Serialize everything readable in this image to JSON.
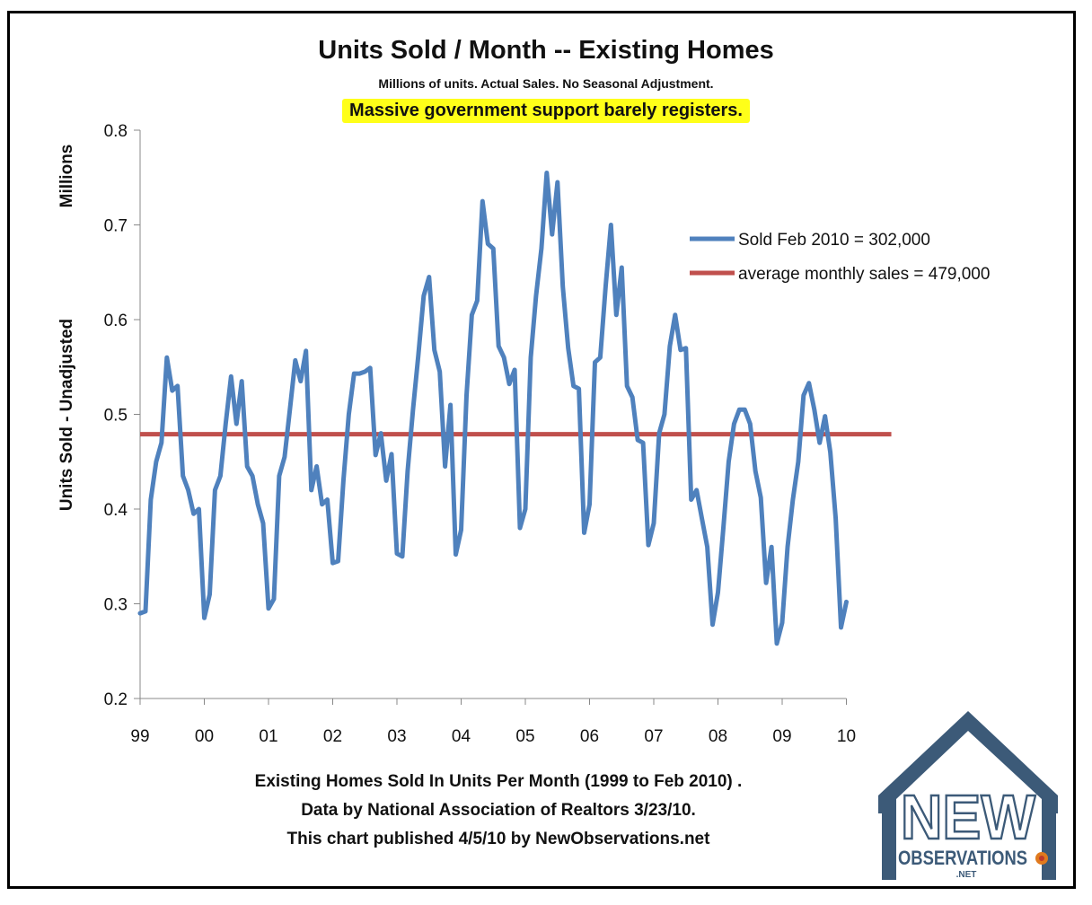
{
  "header": {
    "title": "Units Sold / Month -- Existing Homes",
    "subtitle": "Millions of units. Actual Sales. No Seasonal Adjustment.",
    "highlight": "Massive government support barely registers."
  },
  "footer": {
    "line1": "Existing Homes Sold In Units Per Month (1999 to Feb 2010) .",
    "line2": "Data by National Association of Realtors 3/23/10.",
    "line3": "This chart published 4/5/10 by NewObservations.net"
  },
  "logo": {
    "main": "NEW",
    "sub": "OBSERVATIONS",
    "tld": ".NET"
  },
  "colors": {
    "series_sold": "#4f81bd",
    "series_avg": "#c0504d",
    "highlight_bg": "#ffff19",
    "logo": "#3c5a78"
  },
  "chart_data": {
    "type": "line",
    "ylabel_outer": "Millions",
    "ylabel": "Units Sold - Unadjusted",
    "ylim": [
      0.2,
      0.8
    ],
    "yticks": [
      "0.2",
      "0.3",
      "0.4",
      "0.5",
      "0.6",
      "0.7",
      "0.8"
    ],
    "xticks": [
      "99",
      "00",
      "01",
      "02",
      "03",
      "04",
      "05",
      "06",
      "07",
      "08",
      "09",
      "10"
    ],
    "xlim_years": [
      1999,
      2010
    ],
    "legend_position": "right",
    "series": [
      {
        "name": "Sold Feb 2010 = 302,000",
        "start": "1999-01",
        "values": [
          0.29,
          0.292,
          0.41,
          0.45,
          0.47,
          0.56,
          0.525,
          0.53,
          0.435,
          0.42,
          0.395,
          0.4,
          0.285,
          0.31,
          0.42,
          0.435,
          0.49,
          0.54,
          0.49,
          0.535,
          0.445,
          0.435,
          0.405,
          0.385,
          0.295,
          0.305,
          0.435,
          0.455,
          0.505,
          0.557,
          0.535,
          0.567,
          0.42,
          0.445,
          0.405,
          0.41,
          0.343,
          0.345,
          0.43,
          0.5,
          0.543,
          0.543,
          0.545,
          0.549,
          0.457,
          0.48,
          0.43,
          0.458,
          0.353,
          0.35,
          0.44,
          0.505,
          0.562,
          0.625,
          0.645,
          0.568,
          0.545,
          0.445,
          0.51,
          0.352,
          0.378,
          0.52,
          0.605,
          0.62,
          0.725,
          0.68,
          0.675,
          0.572,
          0.56,
          0.532,
          0.547,
          0.38,
          0.4,
          0.56,
          0.625,
          0.675,
          0.755,
          0.69,
          0.745,
          0.635,
          0.57,
          0.53,
          0.527,
          0.375,
          0.405,
          0.555,
          0.56,
          0.635,
          0.7,
          0.605,
          0.655,
          0.53,
          0.518,
          0.473,
          0.47,
          0.362,
          0.385,
          0.48,
          0.5,
          0.572,
          0.605,
          0.568,
          0.57,
          0.41,
          0.42,
          0.39,
          0.36,
          0.278,
          0.312,
          0.38,
          0.45,
          0.49,
          0.505,
          0.505,
          0.49,
          0.44,
          0.412,
          0.322,
          0.36,
          0.258,
          0.28,
          0.36,
          0.41,
          0.45,
          0.52,
          0.533,
          0.505,
          0.47,
          0.498,
          0.46,
          0.39,
          0.275,
          0.302
        ]
      },
      {
        "name": "average monthly sales = 479,000",
        "value": 0.479
      }
    ]
  }
}
